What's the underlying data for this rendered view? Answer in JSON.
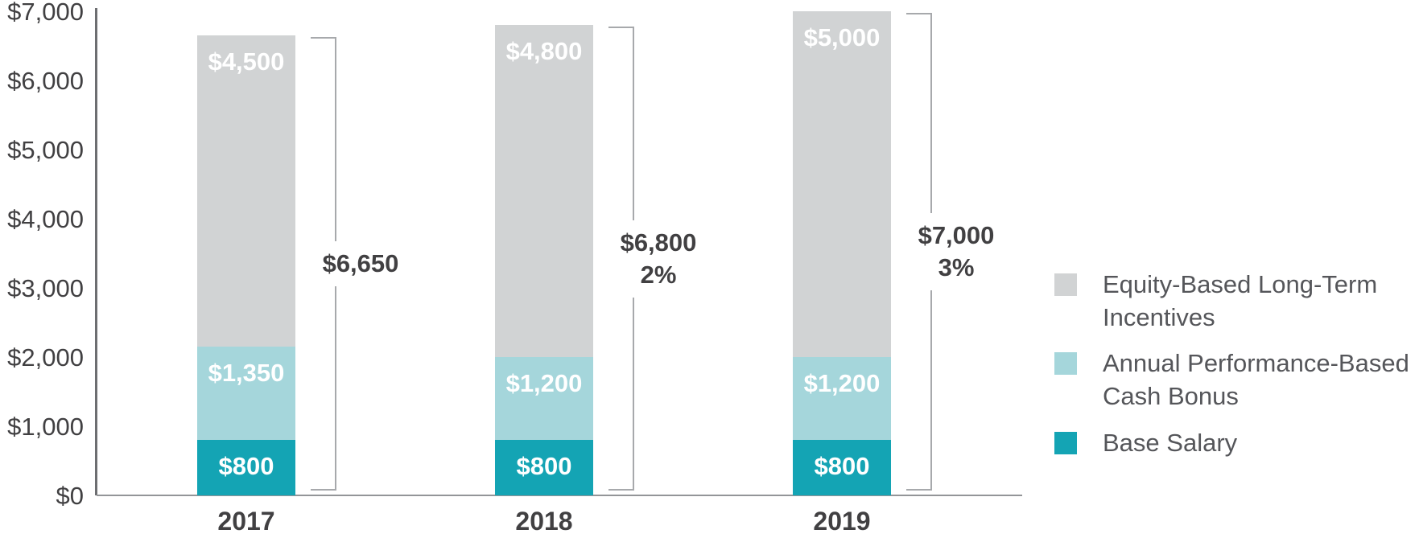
{
  "chart_data": {
    "type": "bar",
    "stacked": true,
    "categories": [
      "2017",
      "2018",
      "2019"
    ],
    "series": [
      {
        "name": "Base Salary",
        "color": "#14a4b4",
        "values": [
          800,
          800,
          800
        ],
        "value_labels": [
          "$800",
          "$800",
          "$800"
        ]
      },
      {
        "name": "Annual Performance-Based Cash Bonus",
        "color": "#a5d6db",
        "values": [
          1350,
          1200,
          1200
        ],
        "value_labels": [
          "$1,350",
          "$1,200",
          "$1,200"
        ]
      },
      {
        "name": "Equity-Based Long-Term Incentives",
        "color": "#d1d3d4",
        "values": [
          4500,
          4800,
          5000
        ],
        "value_labels": [
          "$4,500",
          "$4,800",
          "$5,000"
        ]
      }
    ],
    "totals": [
      {
        "value": 6650,
        "label": "$6,650",
        "change": ""
      },
      {
        "value": 6800,
        "label": "$6,800",
        "change": "2%"
      },
      {
        "value": 7000,
        "label": "$7,000",
        "change": "3%"
      }
    ],
    "y_axis": {
      "range": [
        0,
        7000
      ],
      "tick_step": 1000,
      "ticks": [
        {
          "value": 7000,
          "label": "$7,000"
        },
        {
          "value": 6000,
          "label": "$6,000"
        },
        {
          "value": 5000,
          "label": "$5,000"
        },
        {
          "value": 4000,
          "label": "$4,000"
        },
        {
          "value": 3000,
          "label": "$3,000"
        },
        {
          "value": 2000,
          "label": "$2,000"
        },
        {
          "value": 1000,
          "label": "$1,000"
        },
        {
          "value": 0,
          "label": "$0"
        }
      ]
    },
    "legend": {
      "position": "right",
      "items": [
        {
          "label": "Equity-Based Long-Term Incentives",
          "color": "#d1d3d4"
        },
        {
          "label": "Annual Performance-Based Cash Bonus",
          "color": "#a5d6db"
        },
        {
          "label": "Base Salary",
          "color": "#14a4b4"
        }
      ]
    },
    "grid": false
  },
  "colors": {
    "y_axis_line": "#6d6e71",
    "x_axis_line": "#939598",
    "bracket_line": "#a7a9ac",
    "text_dark": "#414042",
    "legend_text": "#55565a",
    "bar_value_text": "#ffffff",
    "background": "#ffffff"
  }
}
